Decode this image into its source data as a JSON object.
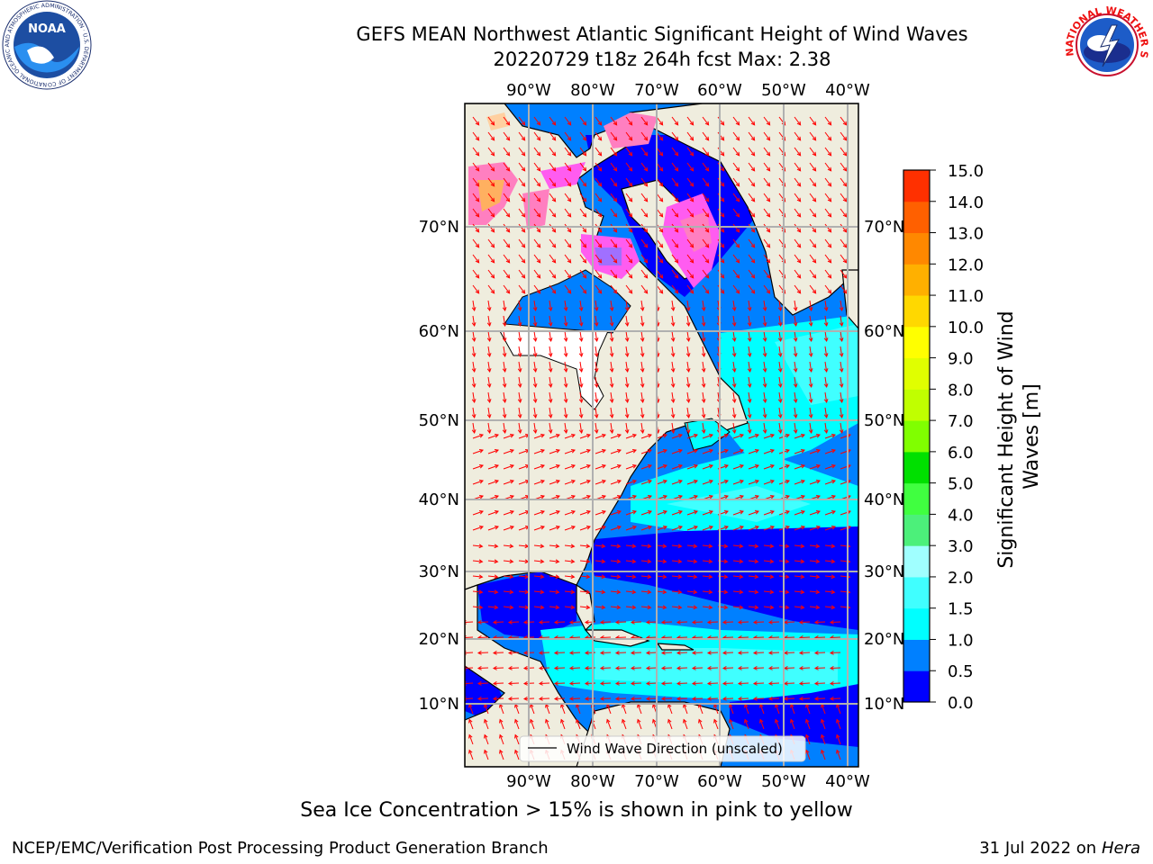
{
  "header": {
    "title_line1": "GEFS MEAN Northwest Atlantic Significant Height of Wind Waves",
    "title_line2": "20220729 t18z 264h fcst   Max: 2.38"
  },
  "logos": {
    "left": {
      "name": "NOAA",
      "ring_text": "NATIONAL OCEANIC AND ATMOSPHERIC ADMINISTRATION · U.S. DEPARTMENT OF COMMERCE"
    },
    "right": {
      "ring_text": "NATIONAL WEATHER SERVICE"
    }
  },
  "map": {
    "lon_ticks": [
      "90°W",
      "80°W",
      "70°W",
      "60°W",
      "50°W",
      "40°W"
    ],
    "lat_ticks": [
      "70°N",
      "60°N",
      "50°N",
      "40°N",
      "30°N",
      "20°N",
      "10°N"
    ],
    "legend_label": "Wind Wave Direction (unscaled)",
    "arrow_color": "#ff0000",
    "land_color": "#efedde"
  },
  "colorbar": {
    "label": "Significant Height of Wind Waves [m]",
    "label_line1": "Significant Height of Wind",
    "label_line2": "Waves [m]",
    "ticks": [
      "15.0",
      "14.0",
      "13.0",
      "12.0",
      "11.0",
      "10.0",
      "9.0",
      "8.0",
      "7.0",
      "6.0",
      "5.0",
      "4.0",
      "3.0",
      "2.0",
      "1.5",
      "1.0",
      "0.5",
      "0.0"
    ],
    "colors_bottom_to_top": [
      "#0000ff",
      "#0080ff",
      "#00ffff",
      "#40ffff",
      "#a0ffff",
      "#4cf07a",
      "#40ff40",
      "#00e000",
      "#80ff00",
      "#c0ff00",
      "#e0ff00",
      "#ffff00",
      "#ffd800",
      "#ffb000",
      "#ff8800",
      "#ff6000",
      "#ff3000"
    ]
  },
  "footer": {
    "note": "Sea Ice Concentration > 15% is shown in pink to yellow",
    "credit": "NCEP/EMC/Verification Post Processing Product Generation Branch",
    "date": "31 Jul 2022 on",
    "machine": "Hera"
  }
}
